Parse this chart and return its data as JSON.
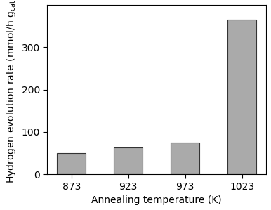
{
  "categories": [
    "873",
    "923",
    "973",
    "1023"
  ],
  "values": [
    50,
    63,
    75,
    365
  ],
  "bar_color": "#aaaaaa",
  "bar_edgecolor": "#333333",
  "xlabel": "Annealing temperature (K)",
  "ylabel": "Hydrogen evolution rate (mmol/h g$_\\mathregular{cat}$)",
  "ylim": [
    0,
    400
  ],
  "yticks": [
    0,
    100,
    200,
    300
  ],
  "background_color": "#ffffff",
  "bar_width": 0.5,
  "tick_fontsize": 10,
  "label_fontsize": 10
}
